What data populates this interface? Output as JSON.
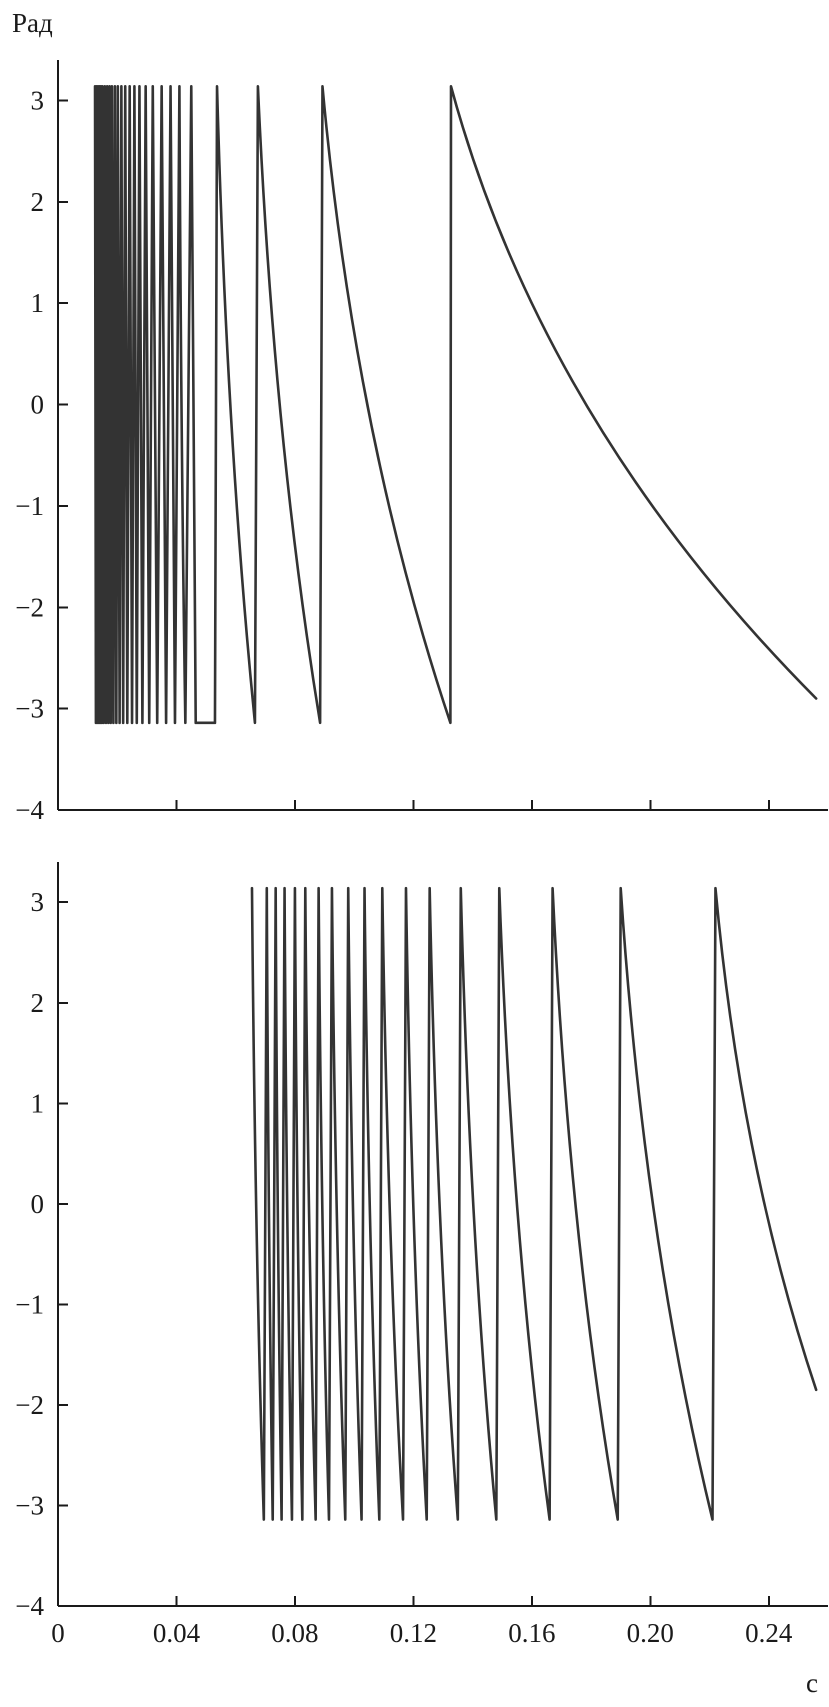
{
  "chart_data": [
    {
      "type": "line",
      "title": "",
      "ylabel": "Рад",
      "xlabel": "",
      "xlim": [
        0,
        0.26
      ],
      "ylim": [
        -4,
        3.4
      ],
      "xticks": [
        0.04,
        0.08,
        0.12,
        0.16,
        0.2,
        0.24
      ],
      "yticks": [
        3,
        2,
        1,
        0,
        -1,
        -2,
        -3,
        -4
      ],
      "ytick_labels": [
        "3",
        "2",
        "1",
        "0",
        "−1",
        "−2",
        "−3",
        "−4"
      ],
      "grid": false,
      "series": [
        {
          "x": [
            0.0125,
            0.0128,
            0.013,
            0.0133,
            0.0135,
            0.0138,
            0.014,
            0.0143,
            0.0145,
            0.0148,
            0.015,
            0.0154,
            0.0158,
            0.0162,
            0.0166,
            0.017,
            0.0174,
            0.0178,
            0.0182,
            0.0187,
            0.0192,
            0.0197,
            0.0202,
            0.0208,
            0.0214,
            0.022,
            0.0227,
            0.0234,
            0.0242,
            0.025,
            0.0258,
            0.0266,
            0.0275,
            0.0285,
            0.0296,
            0.0308,
            0.032,
            0.0335,
            0.035,
            0.0365,
            0.038,
            0.0395,
            0.041,
            0.043,
            0.045,
            0.0465,
            0.053,
            0.0537,
            0.0665,
            0.0675,
            0.0885,
            0.0893,
            0.1325,
            0.1327,
            0.256
          ],
          "y": [
            3.14,
            -3.14,
            3.14,
            -3.14,
            3.14,
            -3.14,
            3.14,
            -3.14,
            3.14,
            -3.14,
            3.14,
            -3.14,
            3.14,
            -3.14,
            3.14,
            -3.14,
            3.14,
            -3.14,
            3.14,
            -3.14,
            3.14,
            -3.14,
            3.14,
            -3.14,
            3.14,
            -3.14,
            3.14,
            -3.14,
            3.14,
            -3.14,
            3.14,
            -3.14,
            3.14,
            -3.14,
            3.14,
            -3.14,
            3.14,
            -3.14,
            3.14,
            -3.14,
            3.14,
            -3.14,
            3.14,
            -3.14,
            3.14,
            -3.14,
            -3.14,
            3.14,
            -3.14,
            3.14,
            -3.14,
            3.14,
            -3.14,
            3.14,
            -2.9
          ]
        }
      ]
    },
    {
      "type": "line",
      "title": "",
      "ylabel": "",
      "xlabel": "с",
      "xlim": [
        0,
        0.26
      ],
      "ylim": [
        -4,
        3.4
      ],
      "xticks": [
        0,
        0.04,
        0.08,
        0.12,
        0.16,
        0.2,
        0.24
      ],
      "xtick_labels": [
        "0",
        "0.04",
        "0.08",
        "0.12",
        "0.16",
        "0.20",
        "0.24"
      ],
      "yticks": [
        3,
        2,
        1,
        0,
        -1,
        -2,
        -3,
        -4
      ],
      "ytick_labels": [
        "3",
        "2",
        "1",
        "0",
        "−1",
        "−2",
        "−3",
        "−4"
      ],
      "grid": false,
      "series": [
        {
          "x": [
            0.0655,
            0.0695,
            0.0705,
            0.0725,
            0.0735,
            0.0755,
            0.0765,
            0.079,
            0.08,
            0.0825,
            0.0835,
            0.087,
            0.088,
            0.0915,
            0.0925,
            0.097,
            0.098,
            0.1025,
            0.1035,
            0.1085,
            0.1095,
            0.1165,
            0.1175,
            0.1245,
            0.1255,
            0.135,
            0.136,
            0.148,
            0.149,
            0.166,
            0.167,
            0.189,
            0.19,
            0.221,
            0.222,
            0.256
          ],
          "y": [
            3.14,
            -3.14,
            3.14,
            -3.14,
            3.14,
            -3.14,
            3.14,
            -3.14,
            3.14,
            -3.14,
            3.14,
            -3.14,
            3.14,
            -3.14,
            3.14,
            -3.14,
            3.14,
            -3.14,
            3.14,
            -3.14,
            3.14,
            -3.14,
            3.14,
            -3.14,
            3.14,
            -3.14,
            3.14,
            -3.14,
            3.14,
            -3.14,
            3.14,
            -3.14,
            3.14,
            -3.14,
            3.14,
            -1.85
          ]
        }
      ]
    }
  ]
}
